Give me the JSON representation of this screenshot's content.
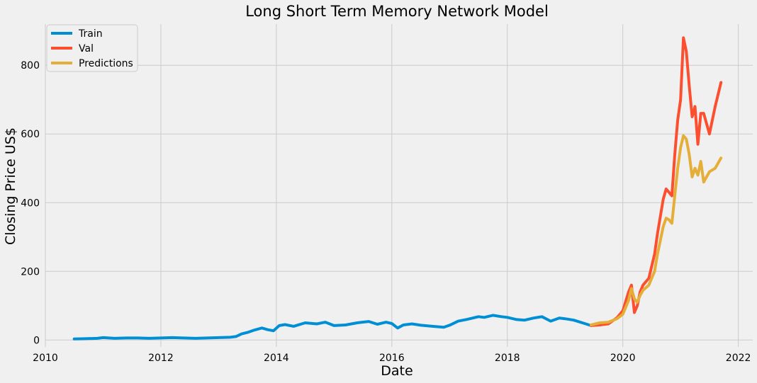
{
  "chart_data": {
    "type": "line",
    "title": "Long Short Term Memory Network Model",
    "xlabel": "Date",
    "ylabel": "Closing Price US$",
    "xlim": [
      2010.0,
      2022.25
    ],
    "ylim": [
      -20,
      920
    ],
    "xticks": [
      2010,
      2012,
      2014,
      2016,
      2018,
      2020,
      2022
    ],
    "yticks": [
      0,
      200,
      400,
      600,
      800
    ],
    "grid": true,
    "legend_position": "top-left",
    "colors": {
      "background": "#f0f0f0",
      "grid": "#cbcbcb",
      "Train": "#008fd5",
      "Val": "#fc4f30",
      "Predictions": "#e5ae38"
    },
    "series": [
      {
        "name": "Train",
        "color": "#008fd5",
        "x": [
          2010.5,
          2010.7,
          2010.9,
          2011.0,
          2011.2,
          2011.4,
          2011.6,
          2011.8,
          2012.0,
          2012.2,
          2012.4,
          2012.6,
          2012.8,
          2013.0,
          2013.2,
          2013.3,
          2013.4,
          2013.5,
          2013.6,
          2013.75,
          2013.85,
          2013.95,
          2014.05,
          2014.15,
          2014.3,
          2014.5,
          2014.7,
          2014.85,
          2015.0,
          2015.2,
          2015.4,
          2015.6,
          2015.75,
          2015.9,
          2016.0,
          2016.1,
          2016.2,
          2016.35,
          2016.5,
          2016.7,
          2016.9,
          2017.0,
          2017.15,
          2017.3,
          2017.5,
          2017.6,
          2017.75,
          2017.9,
          2018.0,
          2018.15,
          2018.3,
          2018.45,
          2018.6,
          2018.75,
          2018.9,
          2019.0,
          2019.15,
          2019.3,
          2019.45
        ],
        "values": [
          3,
          4,
          5,
          7,
          5,
          6,
          6,
          5,
          6,
          7,
          6,
          5,
          6,
          7,
          8,
          10,
          18,
          22,
          28,
          35,
          30,
          27,
          42,
          45,
          40,
          50,
          47,
          52,
          42,
          44,
          50,
          54,
          46,
          52,
          48,
          35,
          44,
          47,
          43,
          40,
          37,
          43,
          55,
          60,
          68,
          66,
          72,
          68,
          66,
          60,
          58,
          64,
          68,
          55,
          64,
          62,
          58,
          50,
          42
        ]
      },
      {
        "name": "Val",
        "color": "#fc4f30",
        "x": [
          2019.45,
          2019.6,
          2019.75,
          2019.9,
          2020.0,
          2020.1,
          2020.15,
          2020.2,
          2020.25,
          2020.3,
          2020.35,
          2020.45,
          2020.55,
          2020.6,
          2020.7,
          2020.75,
          2020.8,
          2020.85,
          2020.9,
          2020.95,
          2021.0,
          2021.05,
          2021.1,
          2021.15,
          2021.2,
          2021.25,
          2021.3,
          2021.35,
          2021.4,
          2021.5,
          2021.6,
          2021.7
        ],
        "values": [
          42,
          44,
          47,
          65,
          85,
          140,
          160,
          80,
          100,
          140,
          160,
          180,
          250,
          310,
          410,
          440,
          430,
          420,
          540,
          640,
          700,
          880,
          840,
          740,
          650,
          680,
          570,
          660,
          660,
          600,
          680,
          750
        ]
      },
      {
        "name": "Predictions",
        "color": "#e5ae38",
        "x": [
          2019.45,
          2019.6,
          2019.75,
          2019.9,
          2020.0,
          2020.1,
          2020.15,
          2020.2,
          2020.25,
          2020.3,
          2020.35,
          2020.45,
          2020.55,
          2020.6,
          2020.7,
          2020.75,
          2020.8,
          2020.85,
          2020.9,
          2020.95,
          2021.0,
          2021.05,
          2021.1,
          2021.15,
          2021.2,
          2021.25,
          2021.3,
          2021.35,
          2021.4,
          2021.5,
          2021.6,
          2021.7
        ],
        "values": [
          44,
          50,
          52,
          62,
          75,
          115,
          150,
          120,
          110,
          130,
          145,
          160,
          200,
          250,
          330,
          355,
          350,
          340,
          420,
          500,
          560,
          595,
          585,
          540,
          475,
          500,
          480,
          520,
          460,
          490,
          500,
          530
        ]
      }
    ]
  }
}
